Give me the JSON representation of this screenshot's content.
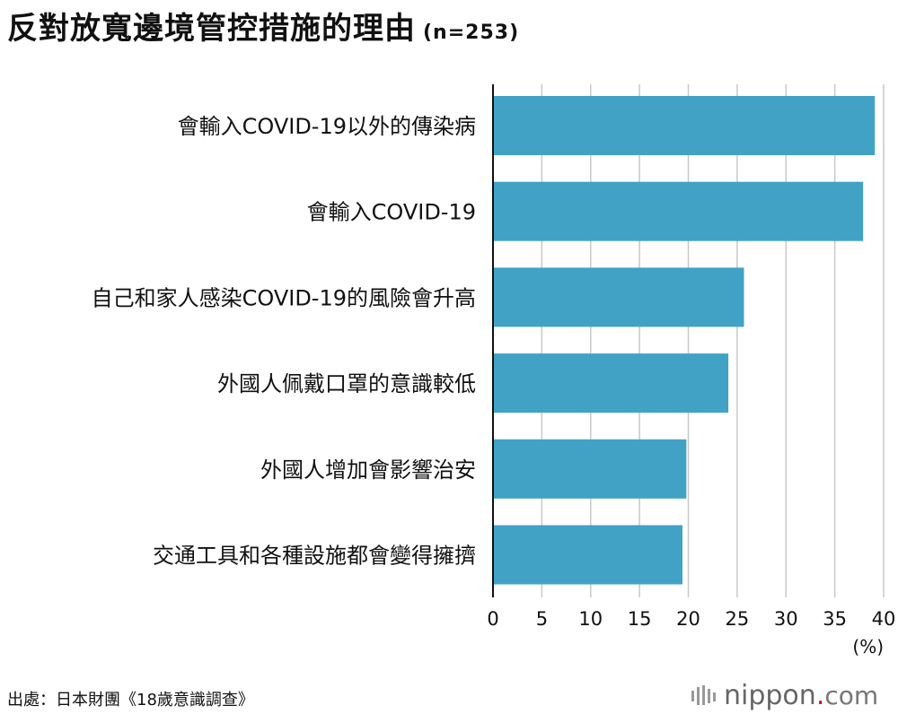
{
  "title": "反對放寬邊境管控措施的理由",
  "subtitle": "(n=253)",
  "source": "出處：日本財團《18歲意識調查》",
  "logo": {
    "name": "nippon",
    "dot": ".",
    "suffix": "com"
  },
  "colors": {
    "bar": "#41a2c6",
    "grid": "#c8c8c8",
    "axis": "#111111",
    "logo_dot": "#e4002b"
  },
  "chart_data": {
    "type": "bar",
    "orientation": "horizontal",
    "categories": [
      "會輸入COVID-19以外的傳染病",
      "會輸入COVID-19",
      "自己和家人感染COVID-19的風險會升高",
      "外國人佩戴口罩的意識較低",
      "外國人增加會影響治安",
      "交通工具和各種設施都會變得擁擠"
    ],
    "values": [
      39.1,
      37.9,
      25.7,
      24.1,
      19.8,
      19.4
    ],
    "xlim": [
      0,
      40
    ],
    "xticks": [
      "0",
      "5",
      "10",
      "15",
      "20",
      "25",
      "30",
      "35",
      "40"
    ],
    "xunit": "(%)",
    "grid": true
  }
}
